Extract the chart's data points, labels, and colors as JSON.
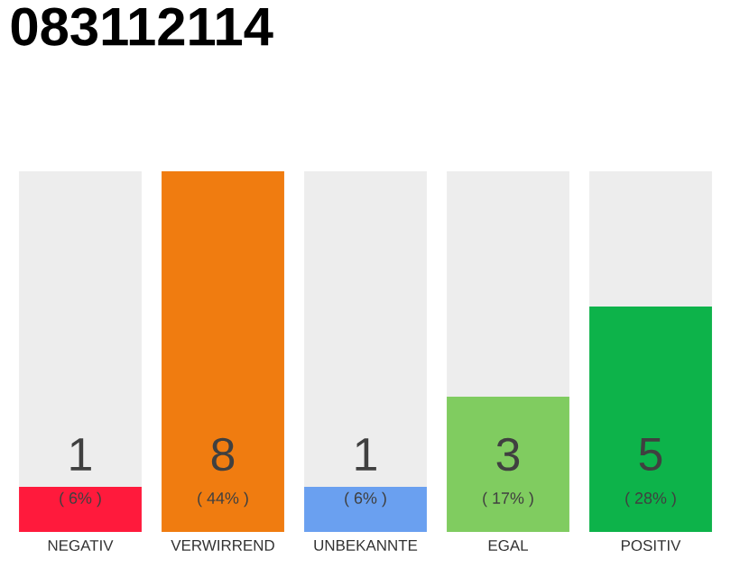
{
  "chart_data": {
    "type": "bar",
    "title": "083112114",
    "categories": [
      "NEGATIV",
      "VERWIRREND",
      "UNBEKANNTE",
      "EGAL",
      "POSITIV"
    ],
    "values": [
      1,
      8,
      1,
      3,
      5
    ],
    "colors": [
      "#ff1a3c",
      "#f07c10",
      "#6aa0f0",
      "#80cc60",
      "#0db34a"
    ],
    "value_labels": [
      "1",
      "8",
      "1",
      "3",
      "5"
    ],
    "annotations": [
      "( 6% )",
      "( 44% )",
      "( 6% )",
      "( 17% )",
      "( 28% )"
    ]
  }
}
